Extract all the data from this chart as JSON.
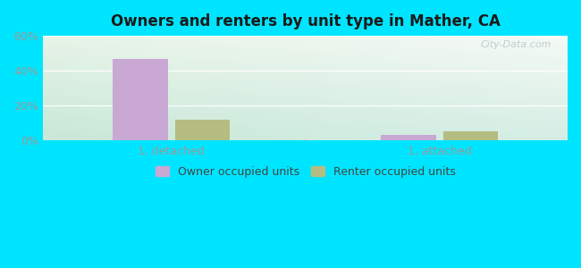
{
  "title": "Owners and renters by unit type in Mather, CA",
  "categories": [
    "1, detached",
    "1, attached"
  ],
  "owner_values": [
    47.0,
    3.0
  ],
  "renter_values": [
    12.0,
    5.5
  ],
  "owner_color": "#c9a8d4",
  "renter_color": "#b5bc82",
  "ylim": [
    0,
    60
  ],
  "yticks": [
    0,
    20,
    40,
    60
  ],
  "ytick_labels": [
    "0%",
    "20%",
    "40%",
    "60%"
  ],
  "legend_owner": "Owner occupied units",
  "legend_renter": "Renter occupied units",
  "outer_color": "#00e5ff",
  "grad_top_left": "#d8ede0",
  "grad_top_right": "#eaf5ee",
  "grad_bottom_left": "#c8e8d8",
  "grad_bottom_right": "#d8f0e8",
  "watermark": "City-Data.com",
  "group_centers": [
    0.9,
    3.1
  ],
  "bar_width": 0.45,
  "bar_gap": 0.06,
  "xlim": [
    -0.15,
    4.15
  ]
}
